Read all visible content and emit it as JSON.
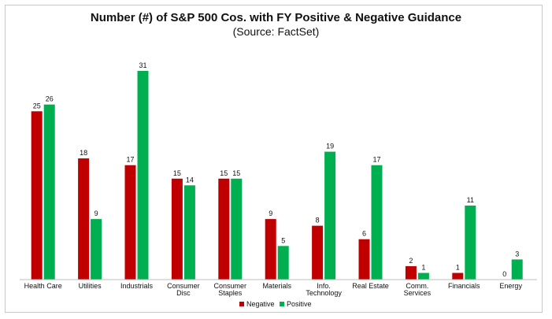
{
  "chart_data": {
    "type": "bar",
    "title": "Number (#) of S&P 500 Cos. with FY Positive & Negative Guidance",
    "subtitle": "(Source: FactSet)",
    "xlabel": "",
    "ylabel": "",
    "ylim": [
      0,
      31
    ],
    "grid": false,
    "legend_position": "bottom-center",
    "categories": [
      [
        "Health Care"
      ],
      [
        "Utilities"
      ],
      [
        "Industrials"
      ],
      [
        "Consumer",
        "Disc"
      ],
      [
        "Consumer",
        "Staples"
      ],
      [
        "Materials"
      ],
      [
        "Info.",
        "Technology"
      ],
      [
        "Real Estate"
      ],
      [
        "Comm.",
        "Services"
      ],
      [
        "Financials"
      ],
      [
        "Energy"
      ]
    ],
    "series": [
      {
        "name": "Negative",
        "color": "#c00000",
        "values": [
          25,
          18,
          17,
          15,
          15,
          9,
          8,
          6,
          2,
          1,
          0
        ]
      },
      {
        "name": "Positive",
        "color": "#00b050",
        "values": [
          26,
          9,
          31,
          14,
          15,
          5,
          19,
          17,
          1,
          11,
          3
        ]
      }
    ]
  }
}
